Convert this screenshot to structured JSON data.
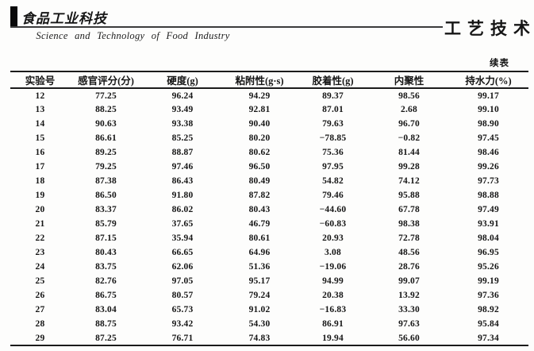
{
  "masthead": {
    "journal_name_cn": "食品工业科技",
    "journal_name_en": "Science  and  Technology  of  Food  Industry",
    "section_title": "工艺技术",
    "continued_label": "续表"
  },
  "table": {
    "columns": [
      "实验号",
      "感官评分(分)",
      "硬度(g)",
      "粘附性(g·s)",
      "胶着性(g)",
      "内聚性",
      "持水力(%)"
    ],
    "rows": [
      [
        "12",
        "77.25",
        "96.24",
        "94.29",
        "89.37",
        "98.56",
        "99.17"
      ],
      [
        "13",
        "88.25",
        "93.49",
        "92.81",
        "87.01",
        "2.68",
        "99.10"
      ],
      [
        "14",
        "90.63",
        "93.38",
        "90.40",
        "79.63",
        "96.70",
        "98.90"
      ],
      [
        "15",
        "86.61",
        "85.25",
        "80.20",
        "−78.85",
        "−0.82",
        "97.45"
      ],
      [
        "16",
        "89.25",
        "88.87",
        "80.62",
        "75.36",
        "81.44",
        "98.46"
      ],
      [
        "17",
        "79.25",
        "97.46",
        "96.50",
        "97.95",
        "99.28",
        "99.26"
      ],
      [
        "18",
        "87.38",
        "86.43",
        "80.49",
        "54.82",
        "74.12",
        "97.73"
      ],
      [
        "19",
        "86.50",
        "91.80",
        "87.82",
        "79.46",
        "95.88",
        "98.88"
      ],
      [
        "20",
        "83.37",
        "86.02",
        "80.43",
        "−44.60",
        "67.78",
        "97.49"
      ],
      [
        "21",
        "85.79",
        "37.65",
        "46.79",
        "−60.83",
        "98.38",
        "93.91"
      ],
      [
        "22",
        "87.15",
        "35.94",
        "80.61",
        "20.93",
        "72.78",
        "98.04"
      ],
      [
        "23",
        "80.43",
        "66.65",
        "64.96",
        "3.08",
        "48.56",
        "96.95"
      ],
      [
        "24",
        "83.75",
        "62.06",
        "51.36",
        "−19.06",
        "28.76",
        "95.26"
      ],
      [
        "25",
        "82.76",
        "97.05",
        "95.17",
        "94.99",
        "99.07",
        "99.19"
      ],
      [
        "26",
        "86.75",
        "80.57",
        "79.24",
        "20.38",
        "13.92",
        "97.36"
      ],
      [
        "27",
        "83.04",
        "65.73",
        "91.02",
        "−16.83",
        "33.30",
        "98.92"
      ],
      [
        "28",
        "88.75",
        "93.42",
        "54.30",
        "86.91",
        "97.63",
        "95.84"
      ],
      [
        "29",
        "87.25",
        "76.71",
        "74.83",
        "19.94",
        "56.60",
        "97.34"
      ]
    ]
  }
}
